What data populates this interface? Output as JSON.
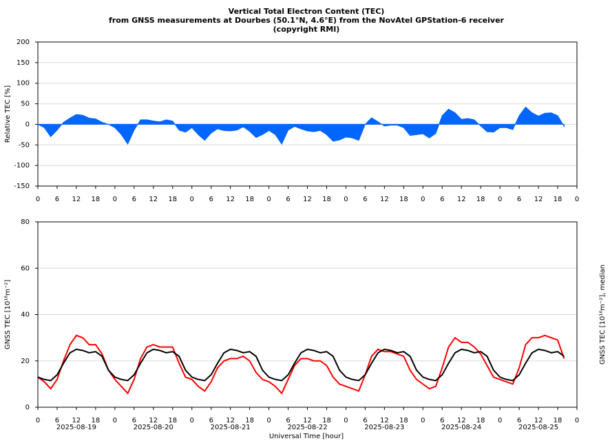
{
  "chart_data": [
    {
      "type": "area",
      "title": [
        "Vertical Total Electron Content (TEC)",
        "from GNSS measurements at Dourbes (50.1°N, 4.6°E) from the NovAtel GPStation-6 receiver",
        "(copyright RMI)"
      ],
      "ylabel": "Relative TEC [%]",
      "ylabel_color": "#0000ff",
      "x": [
        0,
        2,
        4,
        6,
        8,
        10,
        12,
        14,
        16,
        18,
        20,
        22,
        24,
        26,
        28,
        30,
        32,
        34,
        36,
        38,
        40,
        42,
        44,
        46,
        48,
        50,
        52,
        54,
        56,
        58,
        60,
        62,
        64,
        66,
        68,
        70,
        72,
        74,
        76,
        78,
        80,
        82,
        84,
        86,
        88,
        90,
        92,
        94,
        96,
        98,
        100,
        102,
        104,
        106,
        108,
        110,
        112,
        114,
        116,
        118,
        120,
        122,
        124,
        126,
        128,
        130,
        132,
        134,
        136,
        138,
        140,
        142,
        144,
        146,
        148,
        150,
        152,
        154,
        156,
        158,
        160,
        162,
        164
      ],
      "series": [
        {
          "color": "#0066ff",
          "values": [
            0,
            -8,
            -30,
            -14,
            5,
            15,
            24,
            22,
            15,
            13,
            5,
            0,
            -8,
            -25,
            -48,
            -14,
            11,
            11,
            8,
            6,
            11,
            8,
            -14,
            -19,
            -8,
            -25,
            -39,
            -21,
            -11,
            -15,
            -16,
            -14,
            -6,
            -17,
            -32,
            -25,
            -15,
            -25,
            -48,
            -14,
            -5,
            -11,
            -16,
            -18,
            -15,
            -25,
            -41,
            -38,
            -31,
            -33,
            -39,
            0,
            16,
            6,
            -4,
            -2,
            -2,
            -8,
            -27,
            -25,
            -23,
            -33,
            -22,
            21,
            37,
            28,
            12,
            14,
            11,
            -4,
            -18,
            -19,
            -8,
            -8,
            -13,
            21,
            42,
            28,
            20,
            27,
            28,
            21,
            -5
          ]
        }
      ],
      "xlim": [
        0,
        168
      ],
      "xticks": [
        0,
        6,
        12,
        18,
        {
          "value": 24,
          "label": "0"
        },
        {
          "value": 30,
          "label": "6"
        },
        {
          "value": 36,
          "label": "12"
        },
        {
          "value": 42,
          "label": "18"
        },
        {
          "value": 48,
          "label": "0"
        },
        {
          "value": 54,
          "label": "6"
        },
        {
          "value": 60,
          "label": "12"
        },
        {
          "value": 66,
          "label": "18"
        },
        {
          "value": 72,
          "label": "0"
        },
        {
          "value": 78,
          "label": "6"
        },
        {
          "value": 84,
          "label": "12"
        },
        {
          "value": 90,
          "label": "18"
        },
        {
          "value": 96,
          "label": "0"
        },
        {
          "value": 102,
          "label": "6"
        },
        {
          "value": 108,
          "label": "12"
        },
        {
          "value": 114,
          "label": "18"
        },
        {
          "value": 120,
          "label": "0"
        },
        {
          "value": 126,
          "label": "6"
        },
        {
          "value": 132,
          "label": "12"
        },
        {
          "value": 138,
          "label": "18"
        },
        {
          "value": 144,
          "label": "0"
        },
        {
          "value": 150,
          "label": "6"
        },
        {
          "value": 156,
          "label": "12"
        },
        {
          "value": 162,
          "label": "18"
        },
        {
          "value": 168,
          "label": "0"
        }
      ],
      "ylim": [
        -150,
        200
      ],
      "yticks": [
        -150,
        -100,
        -50,
        0,
        50,
        100,
        150,
        200
      ],
      "grid": true
    },
    {
      "type": "line",
      "ylabel": "GNSS TEC [10¹⁶m⁻²]",
      "ylabel_color": "#ff0000",
      "y2label": "GNSS TEC [10¹⁶m⁻²], median",
      "xlabel": "Universal Time [hour]",
      "x": [
        0,
        2,
        4,
        6,
        8,
        10,
        12,
        14,
        16,
        18,
        20,
        22,
        24,
        26,
        28,
        30,
        32,
        34,
        36,
        38,
        40,
        42,
        44,
        46,
        48,
        50,
        52,
        54,
        56,
        58,
        60,
        62,
        64,
        66,
        68,
        70,
        72,
        74,
        76,
        78,
        80,
        82,
        84,
        86,
        88,
        90,
        92,
        94,
        96,
        98,
        100,
        102,
        104,
        106,
        108,
        110,
        112,
        114,
        116,
        118,
        120,
        122,
        124,
        126,
        128,
        130,
        132,
        134,
        136,
        138,
        140,
        142,
        144,
        146,
        148,
        150,
        152,
        154,
        156,
        158,
        160,
        162,
        164
      ],
      "series": [
        {
          "color": "#ff0000",
          "values": [
            13,
            11,
            8,
            12,
            20,
            27,
            31,
            30,
            27,
            27,
            23,
            16,
            12,
            9,
            6,
            12,
            21,
            26,
            27,
            26,
            26,
            26,
            19,
            13,
            12,
            9,
            7,
            11,
            17,
            20,
            21,
            21,
            22,
            20,
            15,
            12,
            11,
            9,
            6,
            12,
            18,
            21,
            21,
            20,
            20,
            18,
            13,
            10,
            9,
            8,
            7,
            14,
            22,
            25,
            24,
            24,
            23,
            22,
            16,
            12,
            10,
            8,
            9,
            17,
            26,
            30,
            28,
            28,
            26,
            23,
            18,
            13,
            12,
            11,
            10,
            17,
            27,
            30,
            30,
            31,
            30,
            29,
            21
          ]
        },
        {
          "color": "#000000",
          "values": [
            13,
            12,
            11.5,
            14,
            19,
            23.5,
            25,
            24.5,
            23.5,
            24,
            22,
            16,
            13,
            12,
            11.5,
            14,
            19,
            23.5,
            25,
            24.5,
            23.5,
            24,
            22,
            16,
            13,
            12,
            11.5,
            14,
            19,
            23.5,
            25,
            24.5,
            23.5,
            24,
            22,
            16,
            13,
            12,
            11.5,
            14,
            19,
            23.5,
            25,
            24.5,
            23.5,
            24,
            22,
            16,
            13,
            12,
            11.5,
            14,
            19,
            23.5,
            25,
            24.5,
            23.5,
            24,
            22,
            16,
            13,
            12,
            11.5,
            14,
            19,
            23.5,
            25,
            24.5,
            23.5,
            24,
            22,
            16,
            13,
            12,
            11.5,
            14,
            19,
            23.5,
            25,
            24.5,
            23.5,
            24,
            22
          ]
        }
      ],
      "xlim": [
        0,
        168
      ],
      "xticks": [
        0,
        6,
        12,
        18,
        {
          "value": 24,
          "label": "0"
        },
        {
          "value": 30,
          "label": "6"
        },
        {
          "value": 36,
          "label": "12"
        },
        {
          "value": 42,
          "label": "18"
        },
        {
          "value": 48,
          "label": "0"
        },
        {
          "value": 54,
          "label": "6"
        },
        {
          "value": 60,
          "label": "12"
        },
        {
          "value": 66,
          "label": "18"
        },
        {
          "value": 72,
          "label": "0"
        },
        {
          "value": 78,
          "label": "6"
        },
        {
          "value": 84,
          "label": "12"
        },
        {
          "value": 90,
          "label": "18"
        },
        {
          "value": 96,
          "label": "0"
        },
        {
          "value": 102,
          "label": "6"
        },
        {
          "value": 108,
          "label": "12"
        },
        {
          "value": 114,
          "label": "18"
        },
        {
          "value": 120,
          "label": "0"
        },
        {
          "value": 126,
          "label": "6"
        },
        {
          "value": 132,
          "label": "12"
        },
        {
          "value": 138,
          "label": "18"
        },
        {
          "value": 144,
          "label": "0"
        },
        {
          "value": 150,
          "label": "6"
        },
        {
          "value": 156,
          "label": "12"
        },
        {
          "value": 162,
          "label": "18"
        },
        {
          "value": 168,
          "label": "0"
        }
      ],
      "day_labels": [
        {
          "value": 12,
          "label": "2025-08-19"
        },
        {
          "value": 36,
          "label": "2025-08-20"
        },
        {
          "value": 60,
          "label": "2025-08-21"
        },
        {
          "value": 84,
          "label": "2025-08-22"
        },
        {
          "value": 108,
          "label": "2025-08-23"
        },
        {
          "value": 132,
          "label": "2025-08-24"
        },
        {
          "value": 156,
          "label": "2025-08-25"
        }
      ],
      "ylim": [
        0,
        80
      ],
      "yticks": [
        0,
        20,
        40,
        60,
        80
      ],
      "grid": true
    }
  ]
}
